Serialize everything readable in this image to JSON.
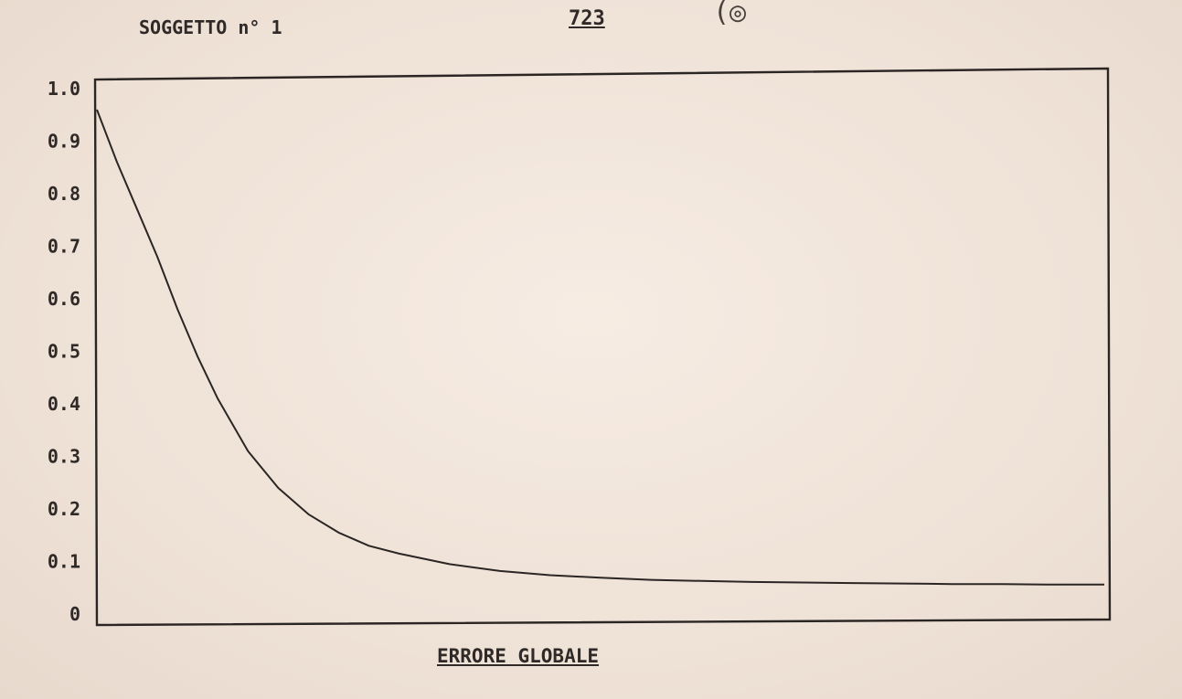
{
  "header": {
    "subject": "SOGGETTO n° 1",
    "page_number": "723",
    "mark": "(◎"
  },
  "chart_data": {
    "type": "line",
    "title": "",
    "xlabel": "ERRORE GLOBALE",
    "ylabel": "",
    "ylim": [
      0,
      1.0
    ],
    "xlim": [
      0,
      100
    ],
    "grid": false,
    "legend": "none",
    "y_ticks": [
      "1.0",
      "0.9",
      "0.8",
      "0.7",
      "0.6",
      "0.5",
      "0.4",
      "0.3",
      "0.2",
      "0.1",
      "0"
    ],
    "series": [
      {
        "x": [
          0,
          2,
          4,
          6,
          8,
          10,
          12,
          15,
          18,
          21,
          24,
          27,
          30,
          35,
          40,
          45,
          50,
          55,
          60,
          65,
          70,
          75,
          80,
          85,
          90,
          95,
          100
        ],
        "y": [
          0.96,
          0.86,
          0.77,
          0.68,
          0.58,
          0.49,
          0.41,
          0.31,
          0.24,
          0.19,
          0.155,
          0.13,
          0.115,
          0.095,
          0.082,
          0.074,
          0.069,
          0.065,
          0.063,
          0.061,
          0.06,
          0.059,
          0.058,
          0.057,
          0.057,
          0.056,
          0.056
        ]
      }
    ]
  }
}
